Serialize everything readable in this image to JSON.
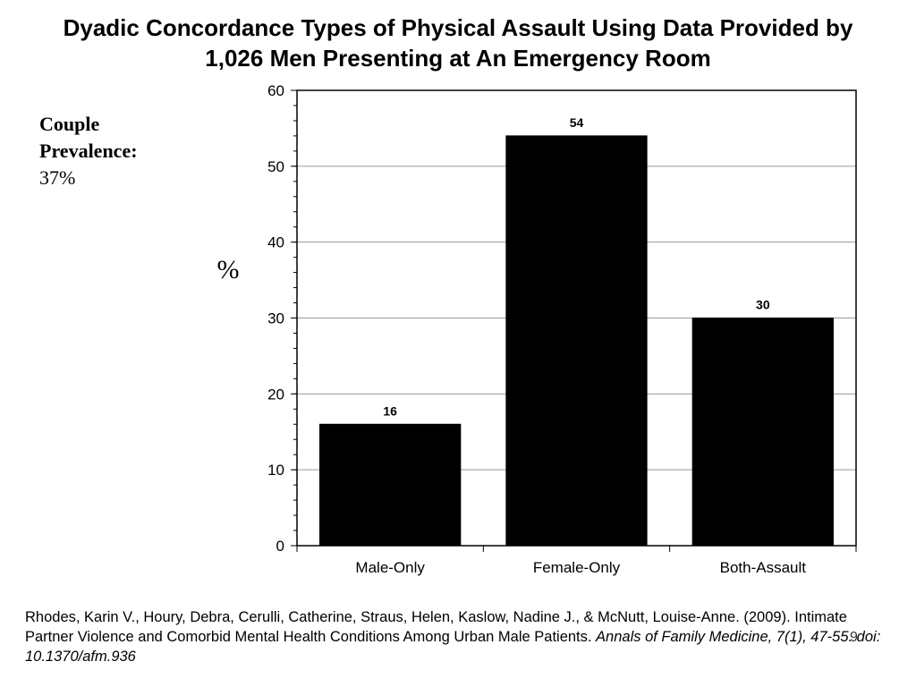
{
  "title_lines": [
    "Dyadic Concordance Types of Physical Assault Using Data Provided by",
    "1,026 Men Presenting at An Emergency Room"
  ],
  "prevalence": {
    "label_line1": "Couple",
    "label_line2": "Prevalence:",
    "value": "37%"
  },
  "citation": {
    "authors": "Rhodes, Karin V., Houry, Debra, Cerulli, Catherine, Straus, Helen, Kaslow, Nadine J., & McNutt, Louise-Anne. (2009). Intimate Partner Violence and Comorbid Mental Health Conditions Among Urban Male Patients. ",
    "journal": "Annals of Family Medicine, 7(1), 47-55. doi: 10.1370/afm.936"
  },
  "slide_number": "9",
  "chart_data": {
    "type": "bar",
    "title": "Dyadic Concordance Types of Physical Assault Using Data Provided by 1,026 Men Presenting at An Emergency Room",
    "xlabel": "",
    "ylabel": "%",
    "categories": [
      "Male-Only",
      "Female-Only",
      "Both-Assault"
    ],
    "values": [
      16,
      54,
      30
    ],
    "data_labels": [
      "16",
      "54",
      "30"
    ],
    "ylim": [
      0,
      60
    ],
    "yticks": [
      0,
      10,
      20,
      30,
      40,
      50,
      60
    ],
    "grid": true,
    "bar_color": "#000000",
    "grid_color": "#999999",
    "legend": "none"
  }
}
